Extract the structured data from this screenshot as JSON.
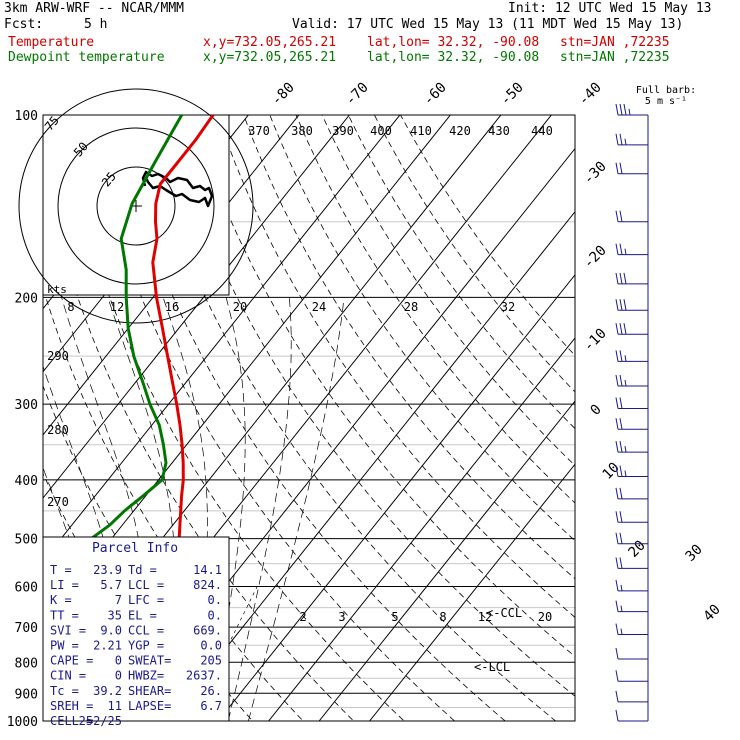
{
  "header": {
    "model": "3km ARW-WRF -- NCAR/MMM",
    "init": "Init: 12 UTC Wed 15 May 13",
    "fcst_label": "Fcst:",
    "fcst_value": "5 h",
    "valid": "Valid: 17 UTC Wed 15 May 13 (11 MDT Wed 15 May 13)",
    "series": [
      {
        "name": "Temperature",
        "xy": "x,y=732.05,265.21",
        "latlon": "lat,lon= 32.32, -90.08",
        "stn": "stn=JAN ,72235",
        "color": "#d00000"
      },
      {
        "name": "Dewpoint temperature",
        "xy": "x,y=732.05,265.21",
        "latlon": "lat,lon= 32.32, -90.08",
        "stn": "stn=JAN ,72235",
        "color": "#007700"
      }
    ]
  },
  "barb_legend": {
    "line1": "Full barb:",
    "line2": "5 m s⁻¹"
  },
  "hodograph": {
    "ring_labels": [
      "25",
      "50",
      "75"
    ],
    "units": "kts"
  },
  "parcel_info": {
    "title": "Parcel Info",
    "rows": [
      [
        "T  =",
        "23.9",
        "Td =",
        "14.1"
      ],
      [
        "LI =",
        "5.7",
        "LCL =",
        "824."
      ],
      [
        "K  =",
        "7",
        "LFC =",
        "0."
      ],
      [
        "TT =",
        "35",
        "EL  =",
        "0."
      ],
      [
        "SVI =",
        "9.0",
        "CCL =",
        "669."
      ],
      [
        "PW =",
        "2.21",
        "YGP =",
        "0.0"
      ],
      [
        "CAPE =",
        "0",
        "SWEAT=",
        "205"
      ],
      [
        "CIN =",
        "0",
        "HWBZ=",
        "2637."
      ],
      [
        "Tc =",
        "39.2",
        "SHEAR=",
        "26."
      ],
      [
        "SREH =",
        "11",
        "LAPSE=",
        "6.7"
      ],
      [
        "CELL =",
        "252/25",
        "",
        ""
      ]
    ]
  },
  "chart_data": {
    "type": "line",
    "title": "",
    "y_axis": {
      "label": "",
      "scale": "log",
      "ticks": [
        100,
        200,
        300,
        400,
        500,
        600,
        700,
        800,
        900,
        1000
      ],
      "range": [
        1000,
        100
      ]
    },
    "isotherm_labels": [
      -80,
      -70,
      -60,
      -50,
      -40,
      -30,
      -20,
      -10,
      0,
      10,
      20,
      30,
      40
    ],
    "theta_labels_top": [
      370,
      380,
      390,
      400,
      410,
      420,
      430,
      440
    ],
    "theta_labels_left": [
      290,
      280,
      270
    ],
    "mixing_ratio_labels": [
      2,
      3,
      5,
      8,
      12,
      20
    ],
    "hodo_speed_ticks": [
      8,
      12,
      16,
      20,
      24,
      28,
      32
    ],
    "annotations": [
      {
        "text": "<-CCL",
        "p": 667
      },
      {
        "text": "<-LCL",
        "p": 824
      }
    ],
    "series": [
      {
        "name": "Temperature",
        "color": "#e00000",
        "points": [
          [
            1000,
            23.9
          ],
          [
            975,
            21.6
          ],
          [
            950,
            19.8
          ],
          [
            925,
            18.4
          ],
          [
            900,
            16.8
          ],
          [
            875,
            15.2
          ],
          [
            850,
            13.6
          ],
          [
            825,
            12.2
          ],
          [
            800,
            11.0
          ],
          [
            775,
            9.9
          ],
          [
            750,
            8.8
          ],
          [
            725,
            7.6
          ],
          [
            700,
            5.9
          ],
          [
            675,
            4.8
          ],
          [
            650,
            3.5
          ],
          [
            625,
            2.0
          ],
          [
            600,
            0.6
          ],
          [
            575,
            -1.0
          ],
          [
            550,
            -2.8
          ],
          [
            525,
            -4.6
          ],
          [
            500,
            -6.6
          ],
          [
            475,
            -8.6
          ],
          [
            450,
            -10.7
          ],
          [
            425,
            -12.9
          ],
          [
            400,
            -15.1
          ],
          [
            375,
            -17.8
          ],
          [
            350,
            -20.9
          ],
          [
            325,
            -24.4
          ],
          [
            300,
            -28.4
          ],
          [
            275,
            -32.9
          ],
          [
            250,
            -37.8
          ],
          [
            225,
            -43.2
          ],
          [
            200,
            -49.3
          ],
          [
            175,
            -55.6
          ],
          [
            160,
            -58.5
          ],
          [
            150,
            -61.5
          ],
          [
            140,
            -64.3
          ],
          [
            130,
            -66.5
          ],
          [
            120,
            -66.5
          ],
          [
            110,
            -66.5
          ],
          [
            100,
            -67.0
          ]
        ]
      },
      {
        "name": "Dewpoint temperature",
        "color": "#007700",
        "points": [
          [
            1000,
            15.5
          ],
          [
            970,
            15.3
          ],
          [
            955,
            12.0
          ],
          [
            925,
            7.0
          ],
          [
            900,
            6.3
          ],
          [
            890,
            6.4
          ],
          [
            875,
            4.8
          ],
          [
            850,
            -1.0
          ],
          [
            800,
            -8.5
          ],
          [
            750,
            -17.0
          ],
          [
            720,
            -20.6
          ],
          [
            700,
            -11.0
          ],
          [
            675,
            -3.1
          ],
          [
            650,
            -2.2
          ],
          [
            625,
            -2.5
          ],
          [
            600,
            -3.8
          ],
          [
            575,
            -10.0
          ],
          [
            550,
            -18.0
          ],
          [
            525,
            -21.5
          ],
          [
            500,
            -24.0
          ],
          [
            475,
            -22.5
          ],
          [
            450,
            -21.8
          ],
          [
            425,
            -20.5
          ],
          [
            400,
            -19.3
          ],
          [
            375,
            -21.2
          ],
          [
            350,
            -24.6
          ],
          [
            325,
            -28.5
          ],
          [
            300,
            -33.7
          ],
          [
            275,
            -38.8
          ],
          [
            250,
            -44.5
          ],
          [
            225,
            -50.0
          ],
          [
            200,
            -55.3
          ],
          [
            180,
            -59.7
          ],
          [
            160,
            -65.6
          ],
          [
            140,
            -69.0
          ],
          [
            120,
            -71.0
          ],
          [
            100,
            -73.2
          ]
        ]
      }
    ],
    "wind_barbs": [
      {
        "p": 100,
        "speed_kt": 33
      },
      {
        "p": 112,
        "speed_kt": 27
      },
      {
        "p": 125,
        "speed_kt": 22
      },
      {
        "p": 150,
        "speed_kt": 20
      },
      {
        "p": 170,
        "speed_kt": 27
      },
      {
        "p": 190,
        "speed_kt": 32
      },
      {
        "p": 210,
        "speed_kt": 32
      },
      {
        "p": 230,
        "speed_kt": 32
      },
      {
        "p": 255,
        "speed_kt": 27
      },
      {
        "p": 280,
        "speed_kt": 27
      },
      {
        "p": 305,
        "speed_kt": 22
      },
      {
        "p": 330,
        "speed_kt": 22
      },
      {
        "p": 360,
        "speed_kt": 27
      },
      {
        "p": 395,
        "speed_kt": 27
      },
      {
        "p": 430,
        "speed_kt": 22
      },
      {
        "p": 470,
        "speed_kt": 22
      },
      {
        "p": 510,
        "speed_kt": 22
      },
      {
        "p": 560,
        "speed_kt": 22
      },
      {
        "p": 610,
        "speed_kt": 17
      },
      {
        "p": 660,
        "speed_kt": 17
      },
      {
        "p": 720,
        "speed_kt": 15
      },
      {
        "p": 790,
        "speed_kt": 12
      },
      {
        "p": 860,
        "speed_kt": 10
      },
      {
        "p": 930,
        "speed_kt": 10
      },
      {
        "p": 1000,
        "speed_kt": 8
      }
    ],
    "hodograph_trace": [
      [
        0,
        0
      ],
      [
        3,
        -2
      ],
      [
        4,
        5
      ],
      [
        6,
        10
      ],
      [
        10,
        12
      ],
      [
        15,
        15
      ],
      [
        19,
        14
      ],
      [
        23,
        17
      ],
      [
        30,
        14
      ],
      [
        35,
        17
      ],
      [
        41,
        13
      ],
      [
        47,
        8
      ],
      [
        52,
        11
      ],
      [
        55,
        16
      ],
      [
        55,
        23
      ],
      [
        48,
        26
      ],
      [
        40,
        22
      ],
      [
        34,
        27
      ],
      [
        26,
        25
      ],
      [
        20,
        31
      ],
      [
        12,
        28
      ],
      [
        7,
        34
      ],
      [
        5,
        29
      ],
      [
        4,
        23
      ],
      [
        4,
        18
      ]
    ]
  }
}
